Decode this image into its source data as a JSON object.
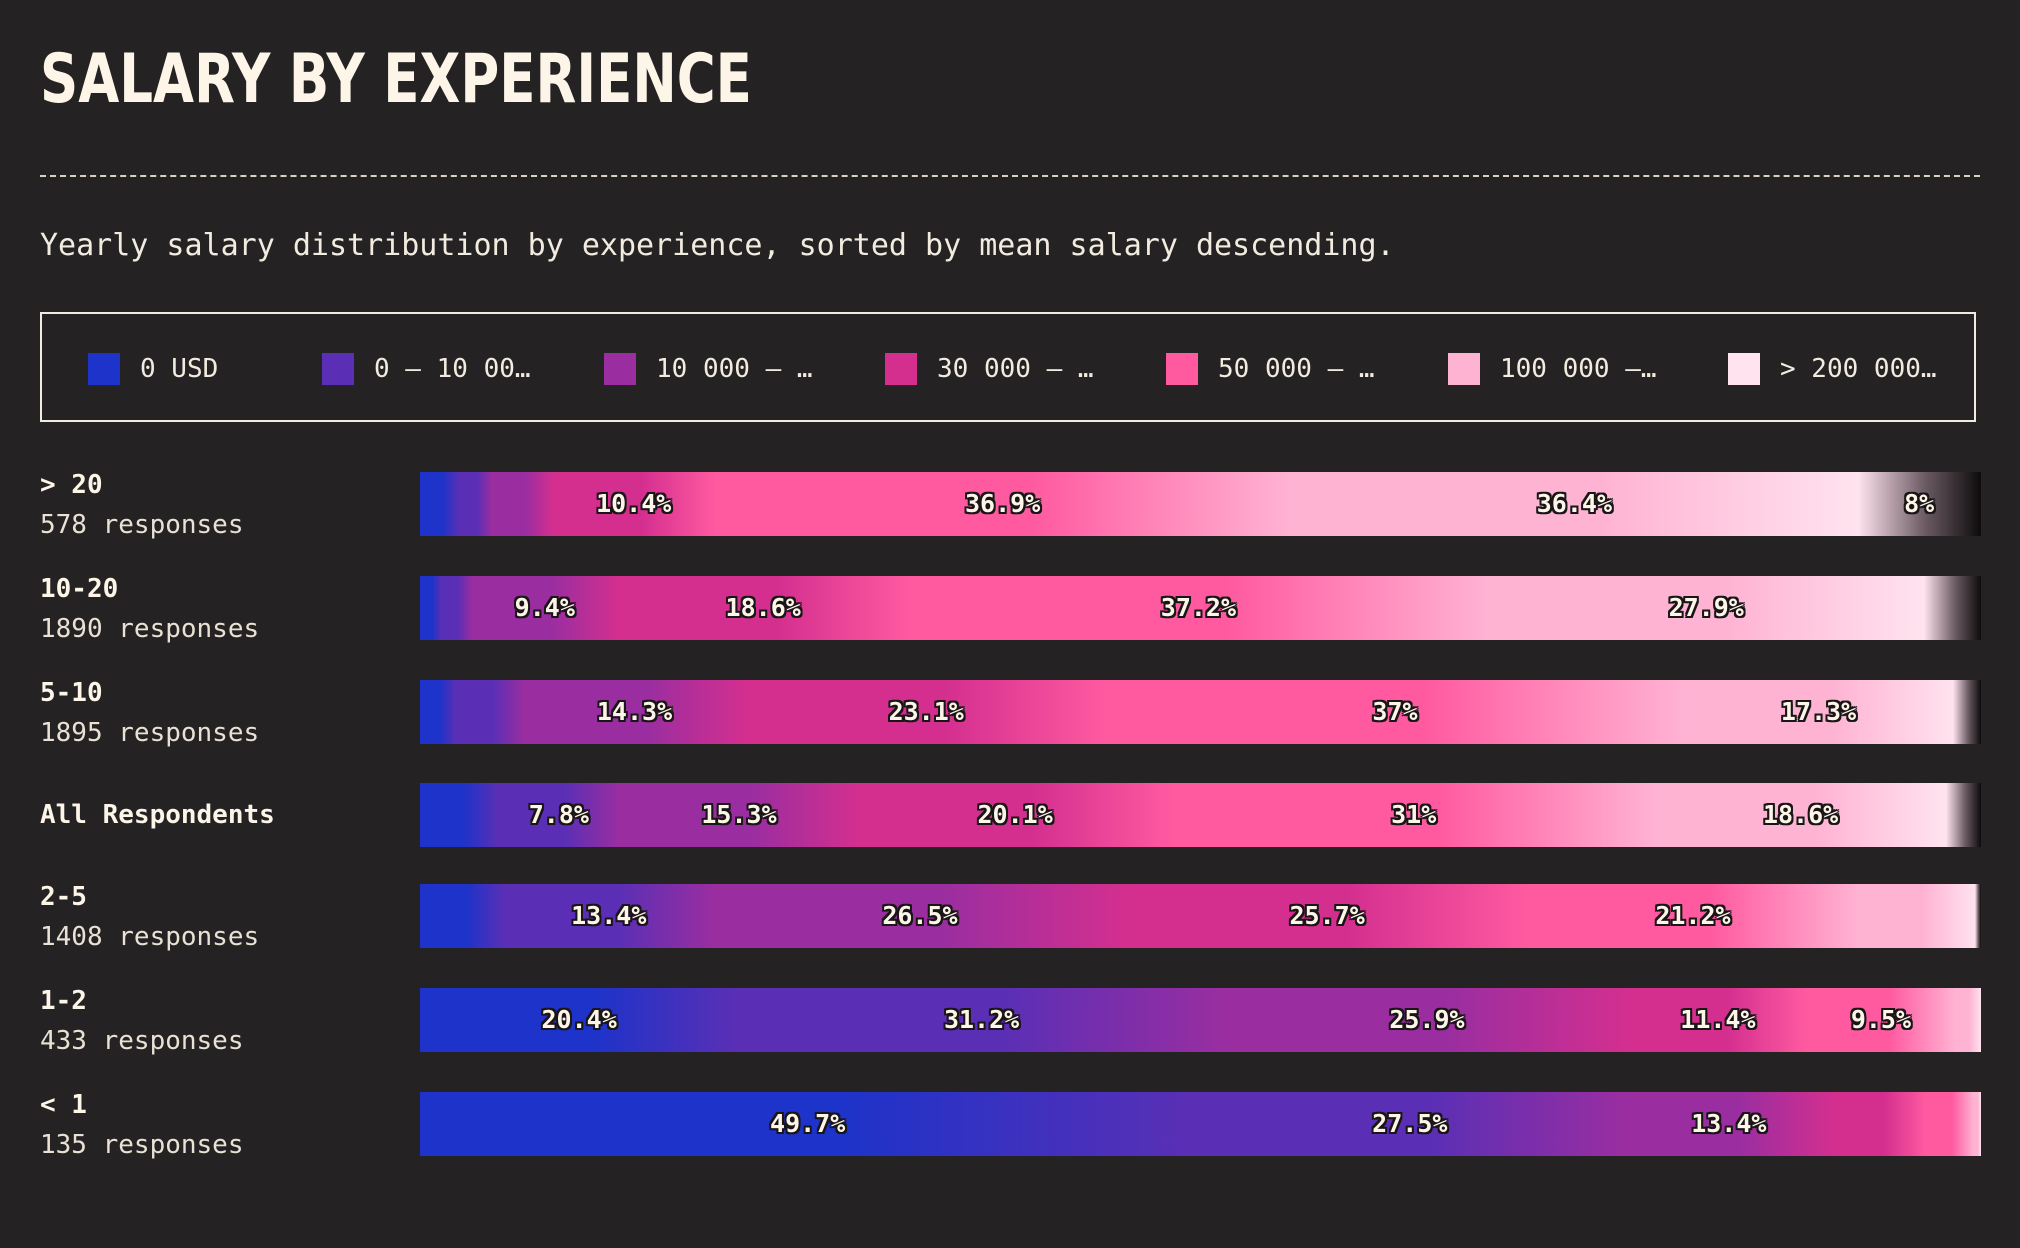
{
  "chart_data": {
    "type": "bar",
    "orientation": "horizontal",
    "stacked": "percent",
    "title": "SALARY BY EXPERIENCE",
    "subtitle": "Yearly salary distribution by experience, sorted by mean salary descending.",
    "legend": {
      "placement": "top",
      "entries": [
        "0 USD",
        "0 – 10 00…",
        "10 000 – …",
        "30 000 – …",
        "50 000 – …",
        "100 000 –…",
        "> 200 000…"
      ]
    },
    "colors": [
      "#1e33c9",
      "#5b2fb5",
      "#9a2ea0",
      "#d42f8f",
      "#ff5aa0",
      "#ffb3d3",
      "#ffe3ef"
    ],
    "rows": [
      {
        "name": "> 20",
        "responses": "578 responses",
        "values": [
          2.5,
          2.1,
          3.9,
          10.4,
          36.9,
          36.4,
          7.8
        ],
        "labels": [
          "",
          "",
          "",
          "10.4%",
          "36.9%",
          "36.4%",
          "8%"
        ]
      },
      {
        "name": "10-20",
        "responses": "1890 responses",
        "values": [
          1.4,
          1.9,
          9.4,
          18.6,
          37.2,
          27.9,
          3.6
        ],
        "labels": [
          "",
          "",
          "9.4%",
          "18.6%",
          "37.2%",
          "27.9%",
          ""
        ]
      },
      {
        "name": "5-10",
        "responses": "1895 responses",
        "values": [
          2.3,
          4.3,
          14.3,
          23.1,
          37.0,
          17.3,
          1.7
        ],
        "labels": [
          "",
          "",
          "14.3%",
          "23.1%",
          "37%",
          "17.3%",
          ""
        ]
      },
      {
        "name": "All Respondents",
        "responses": "",
        "values": [
          5.0,
          7.8,
          15.3,
          20.1,
          31.0,
          18.6,
          2.2
        ],
        "labels": [
          "",
          "7.8%",
          "15.3%",
          "20.1%",
          "31%",
          "18.6%",
          ""
        ]
      },
      {
        "name": "2-5",
        "responses": "1408 responses",
        "values": [
          5.4,
          13.4,
          26.5,
          25.7,
          21.2,
          7.5,
          0.3
        ],
        "labels": [
          "",
          "13.4%",
          "26.5%",
          "25.7%",
          "21.2%",
          "",
          ""
        ]
      },
      {
        "name": "1-2",
        "responses": "433 responses",
        "values": [
          20.4,
          31.2,
          25.9,
          11.4,
          9.5,
          1.6,
          0.0
        ],
        "labels": [
          "20.4%",
          "31.2%",
          "25.9%",
          "11.4%",
          "9.5%",
          "",
          ""
        ]
      },
      {
        "name": "< 1",
        "responses": "135 responses",
        "values": [
          49.7,
          27.5,
          13.4,
          5.9,
          3.1,
          0.4,
          0.0
        ],
        "labels": [
          "49.7%",
          "27.5%",
          "13.4%",
          "",
          "",
          "",
          ""
        ]
      }
    ]
  }
}
